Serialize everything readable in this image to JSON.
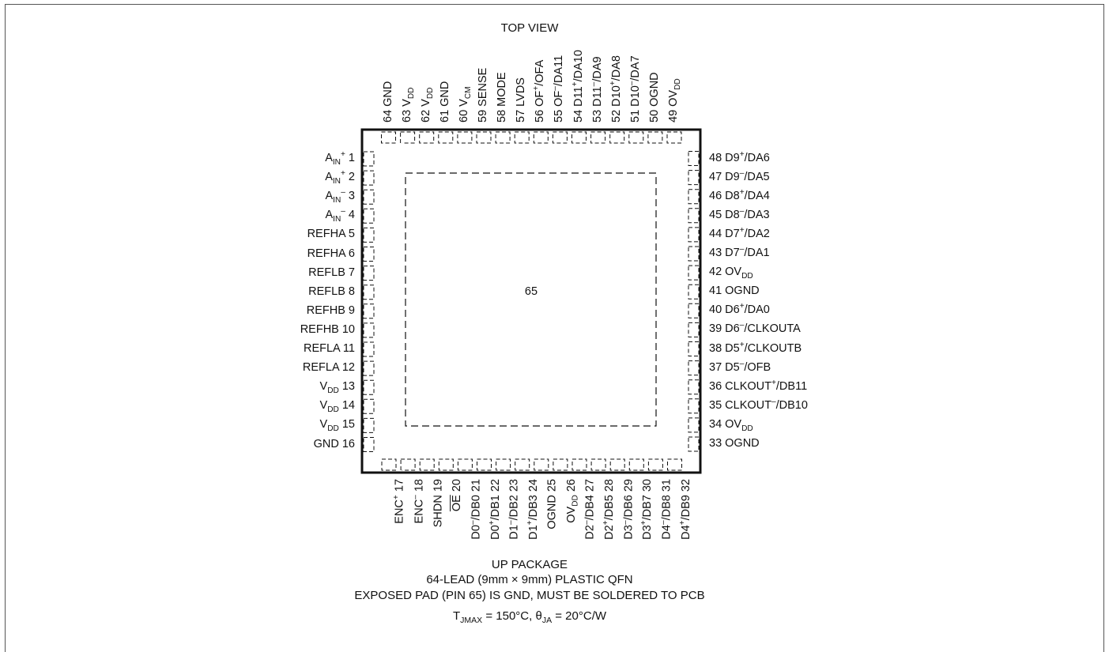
{
  "top_view_label": "TOP VIEW",
  "exposed_pad_label": "65",
  "left_pins": [
    {
      "num": "1",
      "name": "A<sub>IN</sub><sup>+</sup>"
    },
    {
      "num": "2",
      "name": "A<sub>IN</sub><sup>+</sup>"
    },
    {
      "num": "3",
      "name": "A<sub>IN</sub><sup>–</sup>"
    },
    {
      "num": "4",
      "name": "A<sub>IN</sub><sup>–</sup>"
    },
    {
      "num": "5",
      "name": "REFHA"
    },
    {
      "num": "6",
      "name": "REFHA"
    },
    {
      "num": "7",
      "name": "REFLB"
    },
    {
      "num": "8",
      "name": "REFLB"
    },
    {
      "num": "9",
      "name": "REFHB"
    },
    {
      "num": "10",
      "name": "REFHB"
    },
    {
      "num": "11",
      "name": "REFLA"
    },
    {
      "num": "12",
      "name": "REFLA"
    },
    {
      "num": "13",
      "name": "V<sub>DD</sub>"
    },
    {
      "num": "14",
      "name": "V<sub>DD</sub>"
    },
    {
      "num": "15",
      "name": "V<sub>DD</sub>"
    },
    {
      "num": "16",
      "name": "GND"
    }
  ],
  "bottom_pins": [
    {
      "num": "17",
      "name": "ENC<sup>+</sup>"
    },
    {
      "num": "18",
      "name": "ENC<sup>–</sup>"
    },
    {
      "num": "19",
      "name": "SHDN"
    },
    {
      "num": "20",
      "name": "<span style=\"text-decoration:overline\">OE</span>"
    },
    {
      "num": "21",
      "name": "D0<sup>–</sup>/DB0"
    },
    {
      "num": "22",
      "name": "D0<sup>+</sup>/DB1"
    },
    {
      "num": "23",
      "name": "D1<sup>–</sup>/DB2"
    },
    {
      "num": "24",
      "name": "D1<sup>+</sup>/DB3"
    },
    {
      "num": "25",
      "name": "OGND"
    },
    {
      "num": "26",
      "name": "OV<sub>DD</sub>"
    },
    {
      "num": "27",
      "name": "D2<sup>–</sup>/DB4"
    },
    {
      "num": "28",
      "name": "D2<sup>+</sup>/DB5"
    },
    {
      "num": "29",
      "name": "D3<sup>–</sup>/DB6"
    },
    {
      "num": "30",
      "name": "D3<sup>+</sup>/DB7"
    },
    {
      "num": "31",
      "name": "D4<sup>–</sup>/DB8"
    },
    {
      "num": "32",
      "name": "D4<sup>+</sup>/DB9"
    }
  ],
  "right_pins": [
    {
      "num": "33",
      "name": "OGND"
    },
    {
      "num": "34",
      "name": "OV<sub>DD</sub>"
    },
    {
      "num": "35",
      "name": "CLKOUT<sup>–</sup>/DB10"
    },
    {
      "num": "36",
      "name": "CLKOUT<sup>+</sup>/DB11"
    },
    {
      "num": "37",
      "name": "D5<sup>–</sup>/OFB"
    },
    {
      "num": "38",
      "name": "D5<sup>+</sup>/CLKOUTB"
    },
    {
      "num": "39",
      "name": "D6<sup>–</sup>/CLKOUTA"
    },
    {
      "num": "40",
      "name": "D6<sup>+</sup>/DA0"
    },
    {
      "num": "41",
      "name": "OGND"
    },
    {
      "num": "42",
      "name": "OV<sub>DD</sub>"
    },
    {
      "num": "43",
      "name": "D7<sup>–</sup>/DA1"
    },
    {
      "num": "44",
      "name": "D7<sup>+</sup>/DA2"
    },
    {
      "num": "45",
      "name": "D8<sup>–</sup>/DA3"
    },
    {
      "num": "46",
      "name": "D8<sup>+</sup>/DA4"
    },
    {
      "num": "47",
      "name": "D9<sup>–</sup>/DA5"
    },
    {
      "num": "48",
      "name": "D9<sup>+</sup>/DA6"
    }
  ],
  "top_pins": [
    {
      "num": "49",
      "name": "OV<sub>DD</sub>"
    },
    {
      "num": "50",
      "name": "OGND"
    },
    {
      "num": "51",
      "name": "D10<sup>–</sup>/DA7"
    },
    {
      "num": "52",
      "name": "D10<sup>+</sup>/DA8"
    },
    {
      "num": "53",
      "name": "D11<sup>–</sup>/DA9"
    },
    {
      "num": "54",
      "name": "D11<sup>+</sup>/DA10"
    },
    {
      "num": "55",
      "name": "OF<sup>–</sup>/DA11"
    },
    {
      "num": "56",
      "name": "OF<sup>+</sup>/OFA"
    },
    {
      "num": "57",
      "name": "LVDS"
    },
    {
      "num": "58",
      "name": "MODE"
    },
    {
      "num": "59",
      "name": "SENSE"
    },
    {
      "num": "60",
      "name": "V<sub>CM</sub>"
    },
    {
      "num": "61",
      "name": "GND"
    },
    {
      "num": "62",
      "name": "V<sub>DD</sub>"
    },
    {
      "num": "63",
      "name": "V<sub>DD</sub>"
    },
    {
      "num": "64",
      "name": "GND"
    }
  ],
  "footer": {
    "package": "UP PACKAGE",
    "lead": "64-LEAD (9mm × 9mm) PLASTIC QFN",
    "pad_note": "EXPOSED PAD (PIN 65) IS GND, MUST BE SOLDERED TO PCB",
    "thermal": "T<sub>JMAX</sub> = 150°C, θ<sub>JA</sub> = 20°C/W"
  }
}
